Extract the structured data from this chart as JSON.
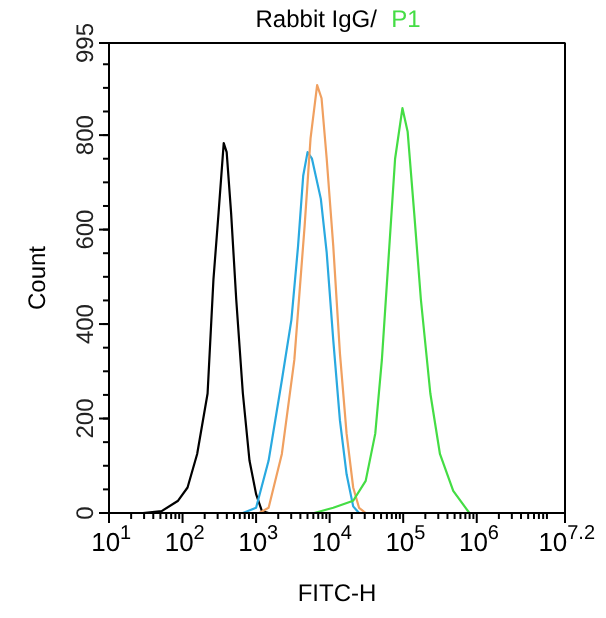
{
  "chart_data": {
    "type": "line",
    "title": "Rabbit IgG/",
    "xlabel": "FITC-H",
    "ylabel": "Count",
    "log": "x",
    "grid": false,
    "marker": "none",
    "line_style": "solid",
    "xlim": [
      10,
      15848932
    ],
    "xticks": [
      {
        "value": 10,
        "label": "10$^{1}$"
      },
      {
        "value": 100,
        "label": "10$^{2}$"
      },
      {
        "value": 1000,
        "label": "10$^{3}$"
      },
      {
        "value": 10000,
        "label": "10$^{4}$"
      },
      {
        "value": 100000,
        "label": "10$^{5}$"
      },
      {
        "value": 1000000,
        "label": "10$^{6}$"
      },
      {
        "value": 15848932,
        "label": "10$^{7.2}$"
      }
    ],
    "ylim": [
      0,
      995
    ],
    "yticks": [
      0,
      200,
      400,
      600,
      800,
      995
    ],
    "series": [
      {
        "color": "#000000",
        "x": [
          29,
          52,
          87,
          117,
          158,
          219,
          263,
          309,
          363,
          398,
          457,
          537,
          661,
          813,
          1000,
          1200,
          1480
        ],
        "values": [
          0,
          4,
          26,
          54,
          125,
          253,
          494,
          636,
          783,
          764,
          636,
          452,
          253,
          111,
          40,
          4,
          0
        ]
      },
      {
        "color": "#29a9e0",
        "x": [
          661,
          1000,
          1480,
          2240,
          3020,
          3720,
          4370,
          5010,
          5750,
          7590,
          9120,
          11200,
          13800,
          17000,
          20900,
          25100
        ],
        "values": [
          0,
          11,
          111,
          281,
          409,
          565,
          714,
          764,
          750,
          665,
          551,
          366,
          196,
          82,
          14,
          0
        ]
      },
      {
        "color": "#f0a060",
        "x": [
          1100,
          1480,
          2240,
          3310,
          4570,
          5500,
          6760,
          7760,
          9120,
          11200,
          13800,
          17000,
          20900,
          25100,
          30900
        ],
        "values": [
          0,
          11,
          125,
          324,
          608,
          793,
          906,
          878,
          750,
          565,
          338,
          168,
          54,
          11,
          0
        ]
      },
      {
        "name": "P1",
        "color": "#44dd44",
        "x": [
          6170,
          11200,
          20900,
          30900,
          41700,
          51300,
          63100,
          77600,
          97700,
          115000,
          141000,
          174000,
          234000,
          316000,
          479000,
          794000
        ],
        "values": [
          0,
          11,
          26,
          68,
          168,
          324,
          537,
          750,
          857,
          807,
          636,
          452,
          253,
          125,
          47,
          0
        ]
      }
    ]
  }
}
